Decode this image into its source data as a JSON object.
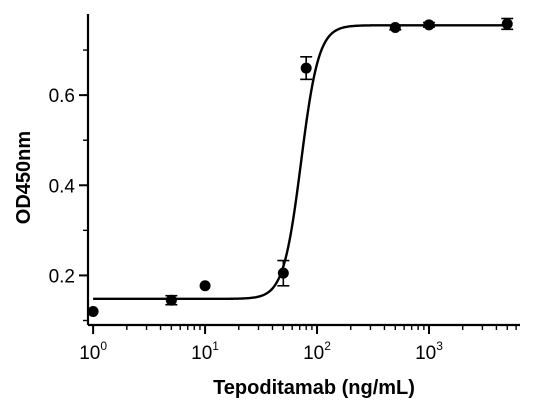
{
  "chart_data": {
    "type": "scatter",
    "title": "",
    "xlabel": "Tepoditamab (ng/mL)",
    "ylabel": "OD450nm",
    "x_scale": "log",
    "xlim": [
      0.9,
      6500
    ],
    "ylim": [
      0.09,
      0.78
    ],
    "x_ticks": [
      {
        "base": "10",
        "exp": "0",
        "value": 1
      },
      {
        "base": "10",
        "exp": "1",
        "value": 10
      },
      {
        "base": "10",
        "exp": "2",
        "value": 100
      },
      {
        "base": "10",
        "exp": "3",
        "value": 1000
      }
    ],
    "y_ticks": [
      {
        "label": "0.2",
        "value": 0.2
      },
      {
        "label": "0.4",
        "value": 0.4
      },
      {
        "label": "0.6",
        "value": 0.6
      }
    ],
    "points": [
      {
        "x": 1,
        "y": 0.12,
        "err": 0.0
      },
      {
        "x": 5,
        "y": 0.145,
        "err": 0.01
      },
      {
        "x": 10,
        "y": 0.177,
        "err": 0.0
      },
      {
        "x": 50,
        "y": 0.205,
        "err": 0.028
      },
      {
        "x": 80,
        "y": 0.66,
        "err": 0.025
      },
      {
        "x": 500,
        "y": 0.75,
        "err": 0.005
      },
      {
        "x": 1000,
        "y": 0.756,
        "err": 0.005
      },
      {
        "x": 5000,
        "y": 0.758,
        "err": 0.012
      }
    ],
    "fit": {
      "model": "4PL",
      "bottom": 0.148,
      "top": 0.755,
      "ec50": 72,
      "hill": 5.5
    },
    "grid": false,
    "legend": "none",
    "colors": {
      "marker": "#000000",
      "line": "#000000"
    }
  }
}
